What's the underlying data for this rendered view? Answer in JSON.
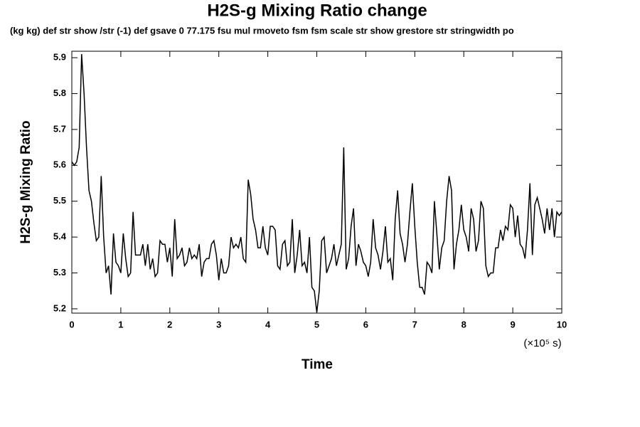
{
  "chart_data": {
    "type": "line",
    "title": "H2S-g Mixing Ratio change",
    "subtitle": "(kg kg) def str show /str (-1) def gsave 0 77.175 fsu mul rmoveto fsm fsm scale str show grestore str stringwidth po",
    "xlabel": "Time",
    "ylabel": "H2S-g Mixing Ratio",
    "x_unit": "(×10⁵ s)",
    "xlim": [
      0,
      10
    ],
    "ylim": [
      5.188,
      5.918
    ],
    "xticks": [
      0,
      1,
      2,
      3,
      4,
      5,
      6,
      7,
      8,
      9,
      10
    ],
    "yticks": [
      5.2,
      5.3,
      5.4,
      5.5,
      5.6,
      5.7,
      5.8,
      5.9
    ],
    "grid": false,
    "x": [
      0,
      0.05,
      0.1,
      0.15,
      0.2,
      0.25,
      0.3,
      0.35,
      0.4,
      0.45,
      0.5,
      0.55,
      0.6,
      0.65,
      0.7,
      0.75,
      0.8,
      0.85,
      0.9,
      0.95,
      1,
      1.05,
      1.1,
      1.15,
      1.2,
      1.25,
      1.3,
      1.35,
      1.4,
      1.45,
      1.5,
      1.55,
      1.6,
      1.65,
      1.7,
      1.75,
      1.8,
      1.85,
      1.9,
      1.95,
      2,
      2.05,
      2.1,
      2.15,
      2.2,
      2.25,
      2.3,
      2.35,
      2.4,
      2.45,
      2.5,
      2.55,
      2.6,
      2.65,
      2.7,
      2.75,
      2.8,
      2.85,
      2.9,
      2.95,
      3,
      3.05,
      3.1,
      3.15,
      3.2,
      3.25,
      3.3,
      3.35,
      3.4,
      3.45,
      3.5,
      3.55,
      3.6,
      3.65,
      3.7,
      3.75,
      3.8,
      3.85,
      3.9,
      3.95,
      4,
      4.05,
      4.1,
      4.15,
      4.2,
      4.25,
      4.3,
      4.35,
      4.4,
      4.45,
      4.5,
      4.55,
      4.6,
      4.65,
      4.7,
      4.75,
      4.8,
      4.85,
      4.9,
      4.95,
      5,
      5.05,
      5.1,
      5.15,
      5.2,
      5.25,
      5.3,
      5.35,
      5.4,
      5.45,
      5.5,
      5.55,
      5.6,
      5.65,
      5.7,
      5.75,
      5.8,
      5.85,
      5.9,
      5.95,
      6,
      6.05,
      6.1,
      6.15,
      6.2,
      6.25,
      6.3,
      6.35,
      6.4,
      6.45,
      6.5,
      6.55,
      6.6,
      6.65,
      6.7,
      6.75,
      6.8,
      6.85,
      6.9,
      6.95,
      7,
      7.05,
      7.1,
      7.15,
      7.2,
      7.25,
      7.3,
      7.35,
      7.4,
      7.45,
      7.5,
      7.55,
      7.6,
      7.65,
      7.7,
      7.75,
      7.8,
      7.85,
      7.9,
      7.95,
      8,
      8.05,
      8.1,
      8.15,
      8.2,
      8.25,
      8.3,
      8.35,
      8.4,
      8.45,
      8.5,
      8.55,
      8.6,
      8.65,
      8.7,
      8.75,
      8.8,
      8.85,
      8.9,
      8.95,
      9,
      9.05,
      9.1,
      9.15,
      9.2,
      9.25,
      9.3,
      9.35,
      9.4,
      9.45,
      9.5,
      9.55,
      9.6,
      9.65,
      9.7,
      9.75,
      9.8,
      9.85,
      9.9,
      9.95,
      10
    ],
    "series": [
      {
        "color": "#000000",
        "values": [
          5.61,
          5.6,
          5.61,
          5.65,
          5.91,
          5.8,
          5.65,
          5.53,
          5.5,
          5.44,
          5.39,
          5.4,
          5.57,
          5.4,
          5.3,
          5.32,
          5.24,
          5.41,
          5.33,
          5.32,
          5.3,
          5.41,
          5.34,
          5.29,
          5.3,
          5.47,
          5.35,
          5.35,
          5.35,
          5.38,
          5.32,
          5.38,
          5.31,
          5.34,
          5.29,
          5.3,
          5.39,
          5.38,
          5.38,
          5.33,
          5.37,
          5.29,
          5.45,
          5.34,
          5.35,
          5.37,
          5.32,
          5.33,
          5.37,
          5.34,
          5.35,
          5.34,
          5.38,
          5.29,
          5.33,
          5.34,
          5.34,
          5.38,
          5.39,
          5.35,
          5.28,
          5.34,
          5.3,
          5.3,
          5.32,
          5.4,
          5.37,
          5.38,
          5.37,
          5.4,
          5.34,
          5.33,
          5.56,
          5.52,
          5.45,
          5.42,
          5.37,
          5.37,
          5.43,
          5.37,
          5.35,
          5.43,
          5.43,
          5.42,
          5.32,
          5.31,
          5.38,
          5.39,
          5.32,
          5.33,
          5.45,
          5.3,
          5.35,
          5.42,
          5.32,
          5.33,
          5.3,
          5.4,
          5.26,
          5.25,
          5.19,
          5.25,
          5.39,
          5.4,
          5.3,
          5.32,
          5.34,
          5.38,
          5.32,
          5.35,
          5.38,
          5.65,
          5.31,
          5.34,
          5.43,
          5.48,
          5.32,
          5.38,
          5.36,
          5.33,
          5.32,
          5.29,
          5.33,
          5.45,
          5.37,
          5.35,
          5.31,
          5.36,
          5.43,
          5.33,
          5.34,
          5.28,
          5.45,
          5.53,
          5.41,
          5.38,
          5.33,
          5.38,
          5.47,
          5.55,
          5.43,
          5.33,
          5.26,
          5.26,
          5.24,
          5.33,
          5.32,
          5.3,
          5.5,
          5.41,
          5.31,
          5.37,
          5.39,
          5.5,
          5.57,
          5.53,
          5.31,
          5.38,
          5.42,
          5.49,
          5.42,
          5.4,
          5.36,
          5.48,
          5.45,
          5.36,
          5.39,
          5.5,
          5.48,
          5.32,
          5.29,
          5.3,
          5.3,
          5.37,
          5.37,
          5.42,
          5.39,
          5.43,
          5.42,
          5.49,
          5.48,
          5.4,
          5.46,
          5.38,
          5.37,
          5.34,
          5.42,
          5.55,
          5.35,
          5.49,
          5.51,
          5.48,
          5.45,
          5.41,
          5.48,
          5.42,
          5.48,
          5.4,
          5.47,
          5.46,
          5.47
        ]
      }
    ]
  }
}
